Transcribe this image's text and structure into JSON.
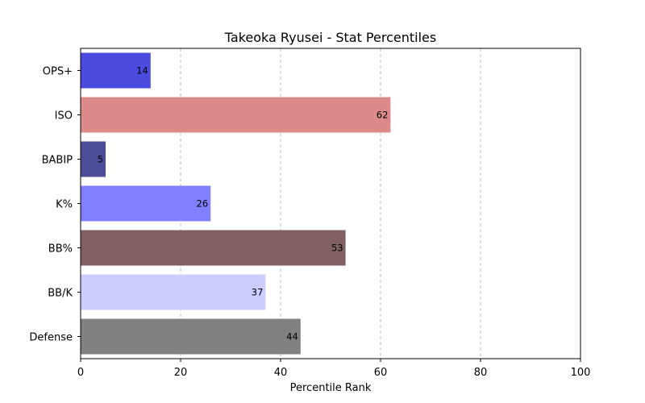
{
  "chart_data": {
    "type": "bar",
    "orientation": "horizontal",
    "title": "Takeoka Ryusei - Stat Percentiles",
    "xlabel": "Percentile Rank",
    "ylabel": "",
    "xlim": [
      0,
      100
    ],
    "xticks": [
      "0",
      "20",
      "40",
      "60",
      "80",
      "100"
    ],
    "grid": "x-axis dashed",
    "categories": [
      "OPS+",
      "ISO",
      "BABIP",
      "K%",
      "BB%",
      "BB/K",
      "Defense"
    ],
    "values": [
      14,
      62,
      5,
      26,
      53,
      37,
      44
    ],
    "colors": [
      "#4b4bdf",
      "#dc8a8a",
      "#4c4c99",
      "#8080ff",
      "#806060",
      "#ccccff",
      "#808080"
    ]
  }
}
